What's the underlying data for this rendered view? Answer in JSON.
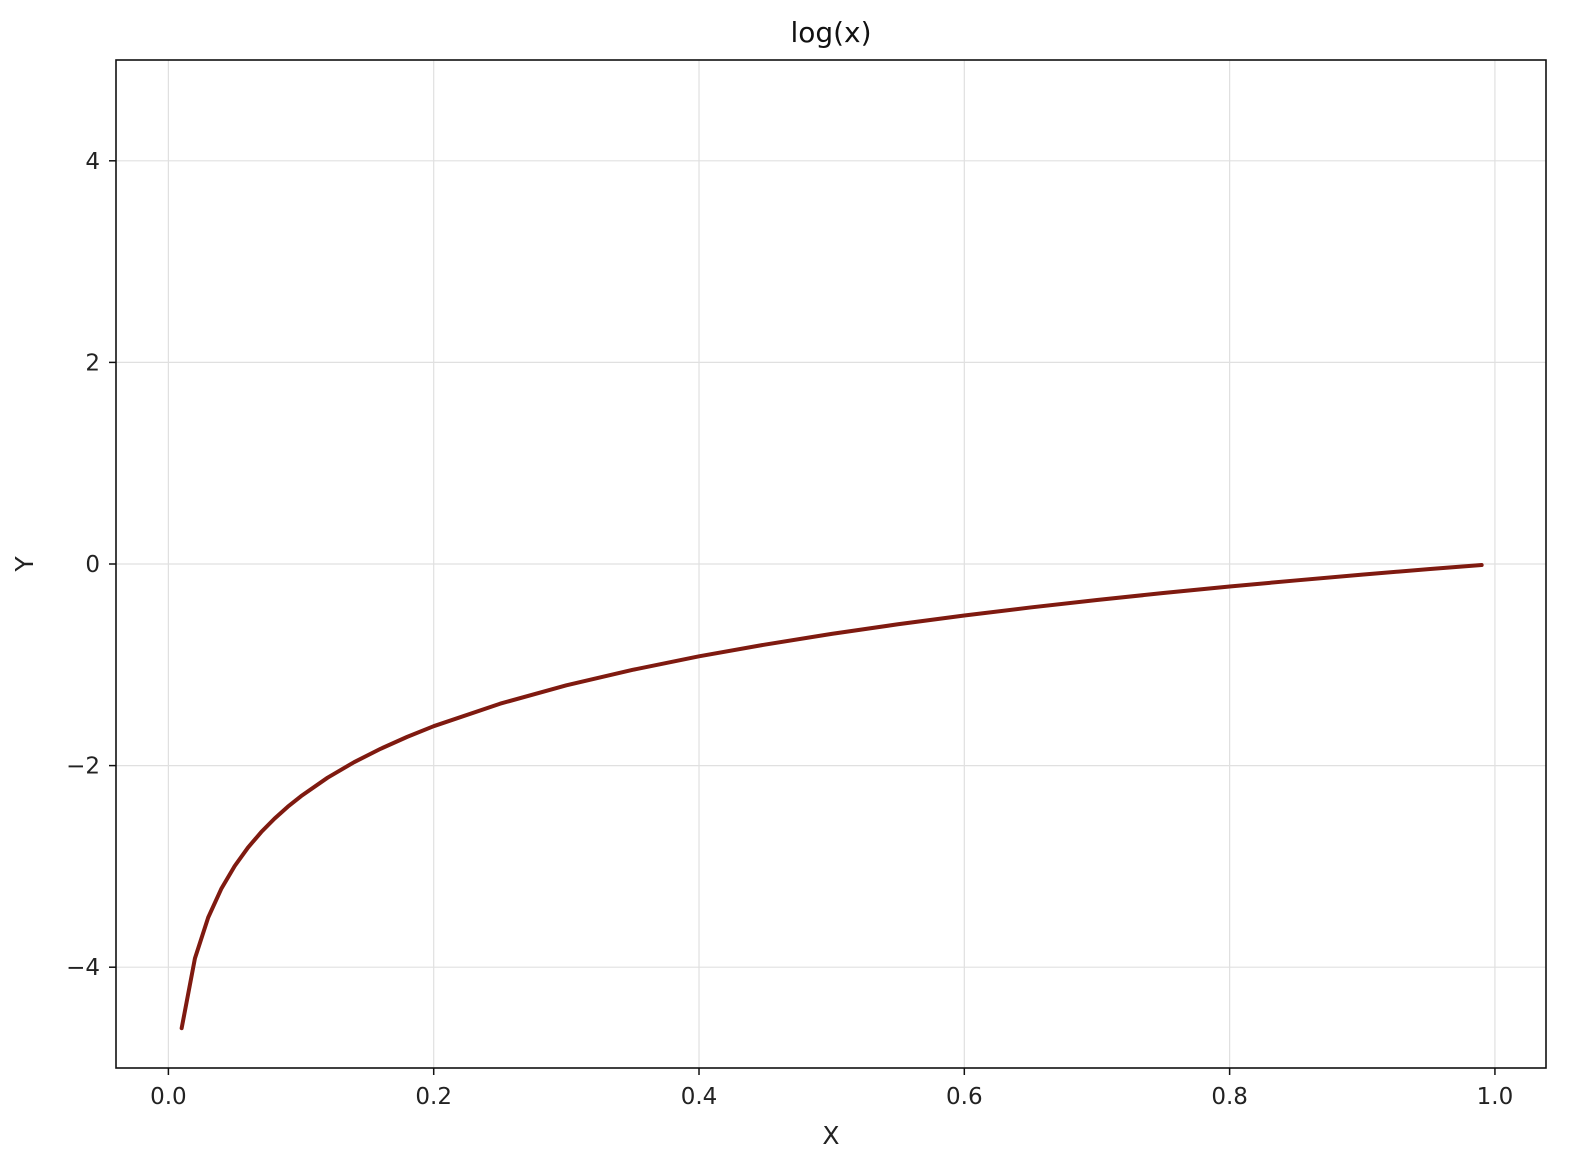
{
  "chart_data": {
    "type": "line",
    "title": "log(x)",
    "xlabel": "X",
    "ylabel": "Y",
    "xlim": [
      -0.0395,
      1.0385
    ],
    "ylim": [
      -5,
      5
    ],
    "x_ticks": [
      0.0,
      0.2,
      0.4,
      0.6,
      0.8,
      1.0
    ],
    "x_tick_labels": [
      "0.0",
      "0.2",
      "0.4",
      "0.6",
      "0.8",
      "1.0"
    ],
    "y_ticks": [
      -4,
      -2,
      0,
      2,
      4
    ],
    "y_tick_labels": [
      "−4",
      "−2",
      "0",
      "2",
      "4"
    ],
    "grid": true,
    "series": [
      {
        "color": "#7f1a10",
        "x": [
          0.01,
          0.02,
          0.03,
          0.04,
          0.05,
          0.06,
          0.07,
          0.08,
          0.09,
          0.1,
          0.12,
          0.14,
          0.16,
          0.18,
          0.2,
          0.25,
          0.3,
          0.35,
          0.4,
          0.45,
          0.5,
          0.55,
          0.6,
          0.65,
          0.7,
          0.75,
          0.8,
          0.85,
          0.9,
          0.95,
          0.99
        ],
        "y": [
          -4.605,
          -3.912,
          -3.507,
          -3.219,
          -2.996,
          -2.813,
          -2.659,
          -2.526,
          -2.408,
          -2.303,
          -2.12,
          -1.966,
          -1.833,
          -1.715,
          -1.609,
          -1.386,
          -1.204,
          -1.05,
          -0.916,
          -0.799,
          -0.693,
          -0.598,
          -0.511,
          -0.431,
          -0.357,
          -0.288,
          -0.223,
          -0.163,
          -0.105,
          -0.051,
          -0.01
        ]
      }
    ]
  }
}
